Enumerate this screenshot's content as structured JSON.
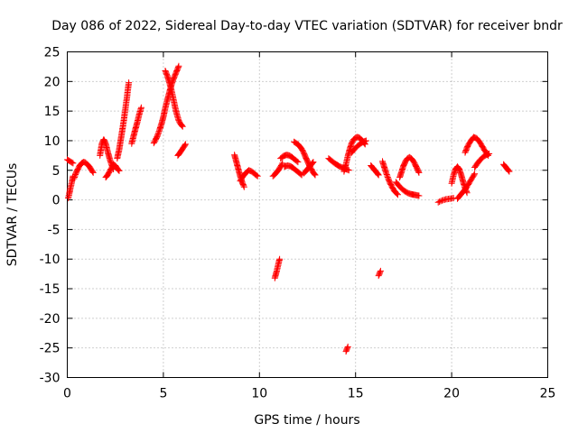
{
  "chart_data": {
    "type": "scatter",
    "title": "Day 086 of 2022, Sidereal Day-to-day VTEC variation (SDTVAR) for receiver bndr",
    "xlabel": "GPS time / hours",
    "ylabel": "SDTVAR / TECUs",
    "xlim": [
      0,
      25
    ],
    "ylim": [
      -30,
      25
    ],
    "xticks": [
      "0",
      "5",
      "10",
      "15",
      "20",
      "25"
    ],
    "yticks": [
      "-30",
      "-25",
      "-20",
      "-15",
      "-10",
      "-5",
      "0",
      "5",
      "10",
      "15",
      "20",
      "25"
    ],
    "grid": true,
    "marker": "plus",
    "color": "#ff0000",
    "segments": [
      {
        "x": [
          0.0,
          0.1,
          0.2,
          0.3
        ],
        "y": [
          6.8,
          6.6,
          6.4,
          6.2
        ]
      },
      {
        "x": [
          0.05,
          0.1,
          0.15,
          0.2,
          0.25,
          0.3
        ],
        "y": [
          0.3,
          1.0,
          1.8,
          2.5,
          3.2,
          4.0
        ]
      },
      {
        "x": [
          0.35,
          0.45,
          0.55,
          0.65,
          0.75,
          0.85,
          0.95,
          1.05,
          1.15,
          1.25,
          1.35
        ],
        "y": [
          3.6,
          4.5,
          5.2,
          5.8,
          6.2,
          6.4,
          6.3,
          6.0,
          5.6,
          5.1,
          4.6
        ]
      },
      {
        "x": [
          1.7,
          1.8,
          1.9,
          2.0,
          2.1,
          2.2,
          2.3,
          2.4
        ],
        "y": [
          7.5,
          9.5,
          10.2,
          9.5,
          8.2,
          7.0,
          6.0,
          5.2
        ]
      },
      {
        "x": [
          2.0,
          2.1,
          2.2,
          2.3,
          2.4,
          2.5,
          2.6,
          2.7
        ],
        "y": [
          3.8,
          4.2,
          4.8,
          5.4,
          6.0,
          5.8,
          5.3,
          4.9
        ]
      },
      {
        "x": [
          2.6,
          2.7,
          2.8,
          2.9,
          3.0,
          3.1,
          3.2
        ],
        "y": [
          7.0,
          8.5,
          10.5,
          12.5,
          14.8,
          17.2,
          19.8
        ]
      },
      {
        "x": [
          3.35,
          3.45,
          3.55,
          3.65,
          3.75,
          3.85
        ],
        "y": [
          9.5,
          10.8,
          12.0,
          13.2,
          14.5,
          15.6
        ]
      },
      {
        "x": [
          4.5,
          4.6,
          4.7,
          4.8,
          4.9,
          5.0,
          5.1,
          5.2,
          5.3,
          5.4,
          5.5,
          5.6,
          5.7,
          5.8
        ],
        "y": [
          9.6,
          10.2,
          10.9,
          11.8,
          12.8,
          14.0,
          15.5,
          16.8,
          18.0,
          19.2,
          20.2,
          21.0,
          21.8,
          22.6
        ]
      },
      {
        "x": [
          5.1,
          5.2,
          5.3,
          5.4,
          5.5,
          5.6,
          5.7,
          5.8,
          5.9,
          6.0
        ],
        "y": [
          21.8,
          21.0,
          20.0,
          18.8,
          17.4,
          15.8,
          14.5,
          13.4,
          12.8,
          12.4
        ]
      },
      {
        "x": [
          5.75,
          5.85,
          5.95,
          6.05,
          6.15
        ],
        "y": [
          7.5,
          7.9,
          8.4,
          8.9,
          9.4
        ]
      },
      {
        "x": [
          8.7,
          8.8,
          8.9,
          9.0,
          9.1,
          9.2
        ],
        "y": [
          7.6,
          6.4,
          5.2,
          4.0,
          3.0,
          2.2
        ]
      },
      {
        "x": [
          9.0,
          9.15,
          9.3,
          9.45,
          9.6,
          9.75,
          9.9
        ],
        "y": [
          3.2,
          4.0,
          4.6,
          5.0,
          4.8,
          4.4,
          4.0
        ]
      },
      {
        "x": [
          10.7,
          10.8,
          10.9,
          11.0,
          11.1,
          11.2
        ],
        "y": [
          4.0,
          4.3,
          4.7,
          5.1,
          5.6,
          6.2
        ]
      },
      {
        "x": [
          11.1,
          11.25,
          11.4,
          11.55,
          11.7,
          11.85,
          12.0
        ],
        "y": [
          7.0,
          7.4,
          7.6,
          7.5,
          7.2,
          6.8,
          6.4
        ]
      },
      {
        "x": [
          11.3,
          11.45,
          11.6,
          11.75,
          11.9,
          12.05,
          12.2
        ],
        "y": [
          5.6,
          5.8,
          5.7,
          5.4,
          5.0,
          4.6,
          4.2
        ]
      },
      {
        "x": [
          10.8,
          10.85,
          10.9,
          10.95,
          11.0,
          11.05
        ],
        "y": [
          -13.2,
          -12.6,
          -12.0,
          -11.3,
          -10.6,
          -10.0
        ]
      },
      {
        "x": [
          11.8,
          11.9,
          12.0,
          12.1,
          12.2,
          12.3,
          12.4,
          12.5,
          12.6,
          12.7,
          12.8,
          12.9
        ],
        "y": [
          9.8,
          9.6,
          9.4,
          9.0,
          8.6,
          8.0,
          7.2,
          6.5,
          5.8,
          5.2,
          4.6,
          4.2
        ]
      },
      {
        "x": [
          12.3,
          12.4,
          12.5,
          12.6,
          12.7,
          12.8
        ],
        "y": [
          4.5,
          4.8,
          5.2,
          5.6,
          6.0,
          6.4
        ]
      },
      {
        "x": [
          13.6,
          13.75,
          13.9,
          14.05,
          14.2,
          14.35,
          14.5,
          14.65
        ],
        "y": [
          7.0,
          6.6,
          6.2,
          5.9,
          5.6,
          5.4,
          5.2,
          5.0
        ]
      },
      {
        "x": [
          14.4,
          14.5,
          14.6,
          14.7,
          14.8,
          14.9,
          15.0,
          15.1,
          15.2,
          15.3,
          15.4,
          15.5
        ],
        "y": [
          4.8,
          6.0,
          7.4,
          8.6,
          9.6,
          10.2,
          10.5,
          10.6,
          10.5,
          10.2,
          9.8,
          9.4
        ]
      },
      {
        "x": [
          14.8,
          14.95,
          15.1,
          15.25,
          15.4,
          15.55
        ],
        "y": [
          8.0,
          8.6,
          9.1,
          9.5,
          9.8,
          10.0
        ]
      },
      {
        "x": [
          14.5,
          14.55,
          14.6
        ],
        "y": [
          -25.6,
          -25.2,
          -24.8
        ]
      },
      {
        "x": [
          15.8,
          15.9,
          16.0,
          16.1,
          16.2
        ],
        "y": [
          5.8,
          5.4,
          5.0,
          4.6,
          4.2
        ]
      },
      {
        "x": [
          16.2,
          16.25,
          16.3
        ],
        "y": [
          -12.8,
          -12.4,
          -12.0
        ]
      },
      {
        "x": [
          16.4,
          16.5,
          16.6,
          16.7,
          16.8,
          16.9,
          17.0,
          17.1,
          17.2
        ],
        "y": [
          6.5,
          5.5,
          4.5,
          3.6,
          2.8,
          2.2,
          1.6,
          1.2,
          0.9
        ]
      },
      {
        "x": [
          17.3,
          17.4,
          17.5,
          17.6,
          17.7,
          17.8,
          17.9,
          18.0,
          18.1,
          18.2,
          18.3
        ],
        "y": [
          3.8,
          4.8,
          5.8,
          6.5,
          7.0,
          7.2,
          7.0,
          6.6,
          6.0,
          5.3,
          4.6
        ]
      },
      {
        "x": [
          17.1,
          17.25,
          17.4,
          17.55,
          17.7,
          17.85,
          18.0,
          18.15,
          18.3
        ],
        "y": [
          3.0,
          2.4,
          1.9,
          1.5,
          1.2,
          1.0,
          0.9,
          0.8,
          0.7
        ]
      },
      {
        "x": [
          19.3,
          19.5,
          19.7,
          19.9,
          20.1
        ],
        "y": [
          -0.4,
          -0.1,
          0.1,
          0.2,
          0.3
        ]
      },
      {
        "x": [
          20.0,
          20.1,
          20.2,
          20.3,
          20.4,
          20.5,
          20.6,
          20.7,
          20.8
        ],
        "y": [
          2.8,
          4.2,
          5.2,
          5.6,
          5.2,
          4.2,
          3.0,
          2.0,
          1.2
        ]
      },
      {
        "x": [
          20.3,
          20.45,
          20.6,
          20.75,
          20.9,
          21.05,
          21.2
        ],
        "y": [
          0.2,
          0.8,
          1.4,
          2.0,
          2.8,
          3.6,
          4.4
        ]
      },
      {
        "x": [
          20.7,
          20.85,
          21.0,
          21.15,
          21.3,
          21.45,
          21.6,
          21.75,
          21.9
        ],
        "y": [
          8.0,
          9.2,
          10.0,
          10.6,
          10.4,
          9.8,
          9.0,
          8.2,
          7.5
        ]
      },
      {
        "x": [
          21.2,
          21.35,
          21.5,
          21.65,
          21.8,
          21.95
        ],
        "y": [
          5.5,
          6.2,
          6.8,
          7.3,
          7.6,
          7.8
        ]
      },
      {
        "x": [
          22.7,
          22.8,
          22.9,
          23.0
        ],
        "y": [
          6.0,
          5.6,
          5.2,
          4.8
        ]
      }
    ]
  }
}
